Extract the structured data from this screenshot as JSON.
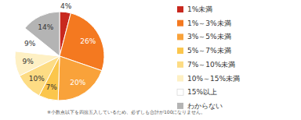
{
  "chart_data": {
    "type": "pie",
    "categories": [
      "1%未満",
      "1%～3%未満",
      "3%～5%未満",
      "5%～7%未満",
      "7%～10%未満",
      "10%～15%未満",
      "15%以上",
      "わからない"
    ],
    "values": [
      4,
      26,
      20,
      7,
      10,
      9,
      9,
      14
    ],
    "value_labels": [
      "4%",
      "26%",
      "20%",
      "7%",
      "10%",
      "9%",
      "9%",
      "14%"
    ],
    "colors": [
      "#c8281e",
      "#f47920",
      "#f9a23a",
      "#fbc64c",
      "#fddc84",
      "#fef0c4",
      "#ffffff",
      "#b4b4b4"
    ],
    "data_labels": true,
    "legend": "right",
    "annotations": [
      "※小数点以下を四捨五入しているため、必ずしも合計が100になりません。"
    ]
  }
}
